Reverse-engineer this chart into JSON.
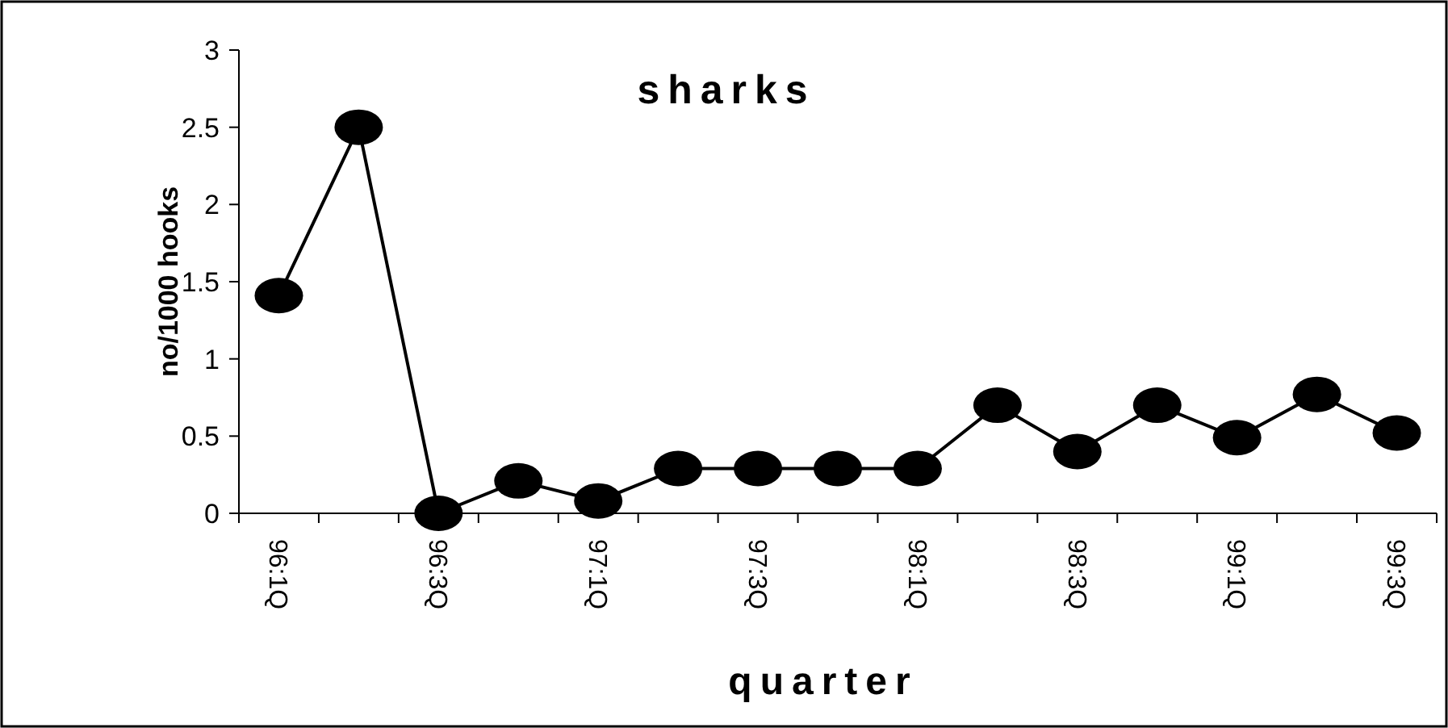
{
  "chart_data": {
    "type": "line",
    "title": "sharks",
    "xlabel": "quarter",
    "ylabel": "no/1000 hooks",
    "categories": [
      "96:1Q",
      null,
      "96:3Q",
      null,
      "97:1Q",
      null,
      "97:3Q",
      null,
      "98:1Q",
      null,
      "98:3Q",
      null,
      "99:1Q",
      null,
      "99:3Q"
    ],
    "series": [
      {
        "color": "#000000",
        "values": [
          1.41,
          2.5,
          0,
          0.21,
          0.08,
          0.29,
          0.29,
          0.29,
          0.29,
          0.7,
          0.4,
          0.7,
          0.49,
          0.77,
          0.52
        ]
      }
    ],
    "ylim": [
      0,
      3
    ],
    "yticks": [
      0,
      {
        "value": 0.5,
        "label": "0.5"
      },
      1,
      {
        "value": 1.5,
        "label": "1.5"
      },
      2,
      {
        "value": 2.5,
        "label": "2.5"
      },
      3
    ],
    "grid": false,
    "marker": "circle",
    "line_style": "solid"
  }
}
